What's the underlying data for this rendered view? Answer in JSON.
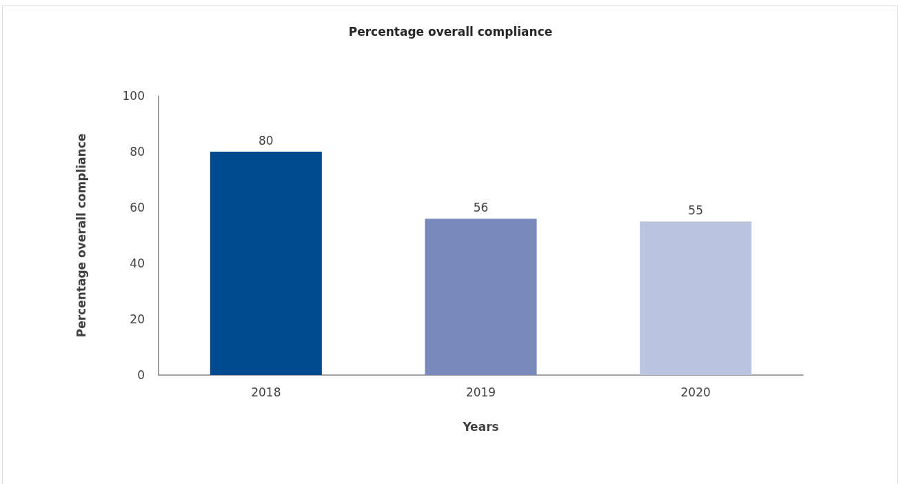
{
  "chart_data": {
    "type": "bar",
    "title": "Percentage overall compliance",
    "xlabel": "Years",
    "ylabel": "Percentage overall compliance",
    "categories": [
      "2018",
      "2019",
      "2020"
    ],
    "values": [
      80,
      56,
      55
    ],
    "colors": [
      "#004a8f",
      "#788abb",
      "#bbc5e0"
    ],
    "ylim": [
      0,
      100
    ],
    "yticks": [
      0,
      20,
      40,
      60,
      80,
      100
    ],
    "data_labels": true
  }
}
